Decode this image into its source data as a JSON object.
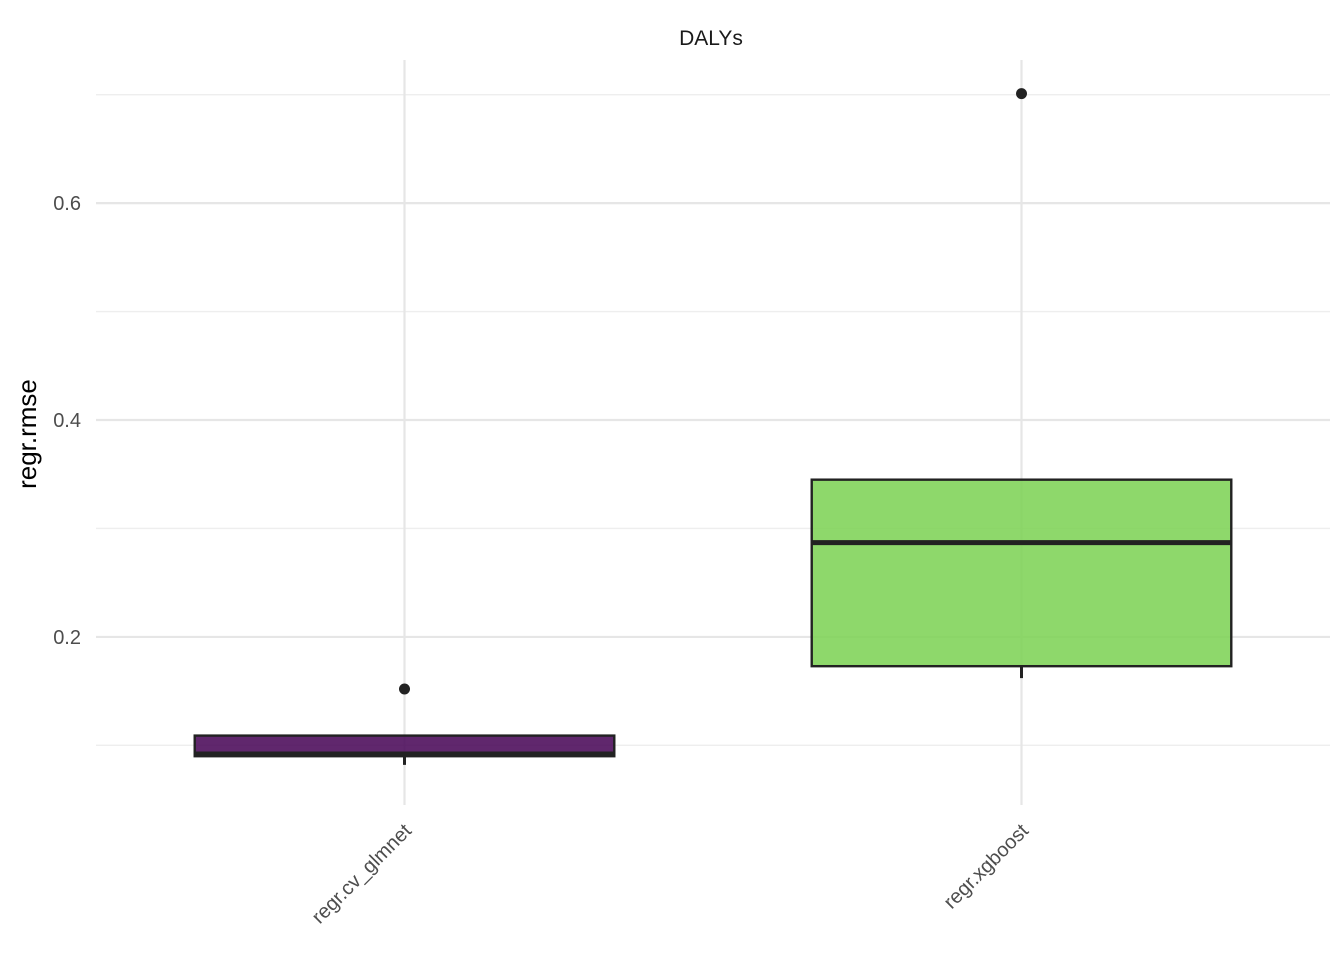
{
  "chart_data": {
    "type": "box",
    "facet_title": "DALYs",
    "ylabel": "regr.rmse",
    "xlabel": "",
    "ylim": [
      0.045,
      0.732
    ],
    "y_ticks": [
      0.2,
      0.4,
      0.6
    ],
    "y_tick_labels": [
      "0.2",
      "0.4",
      "0.6"
    ],
    "y_minor_ticks": [
      0.1,
      0.3,
      0.5,
      0.7
    ],
    "grid": true,
    "legend": "none",
    "categories": [
      "regr.cv_glmnet",
      "regr.xgboost"
    ],
    "series": [
      {
        "category": "regr.cv_glmnet",
        "color": "#440154",
        "whisker_low": 0.082,
        "q1": 0.09,
        "median": 0.092,
        "q3": 0.109,
        "whisker_high": 0.109,
        "outliers": [
          0.152
        ]
      },
      {
        "category": "regr.xgboost",
        "color": "#7AD151",
        "whisker_low": 0.162,
        "q1": 0.173,
        "median": 0.287,
        "q3": 0.345,
        "whisker_high": 0.345,
        "outliers": [
          0.701
        ]
      }
    ]
  }
}
